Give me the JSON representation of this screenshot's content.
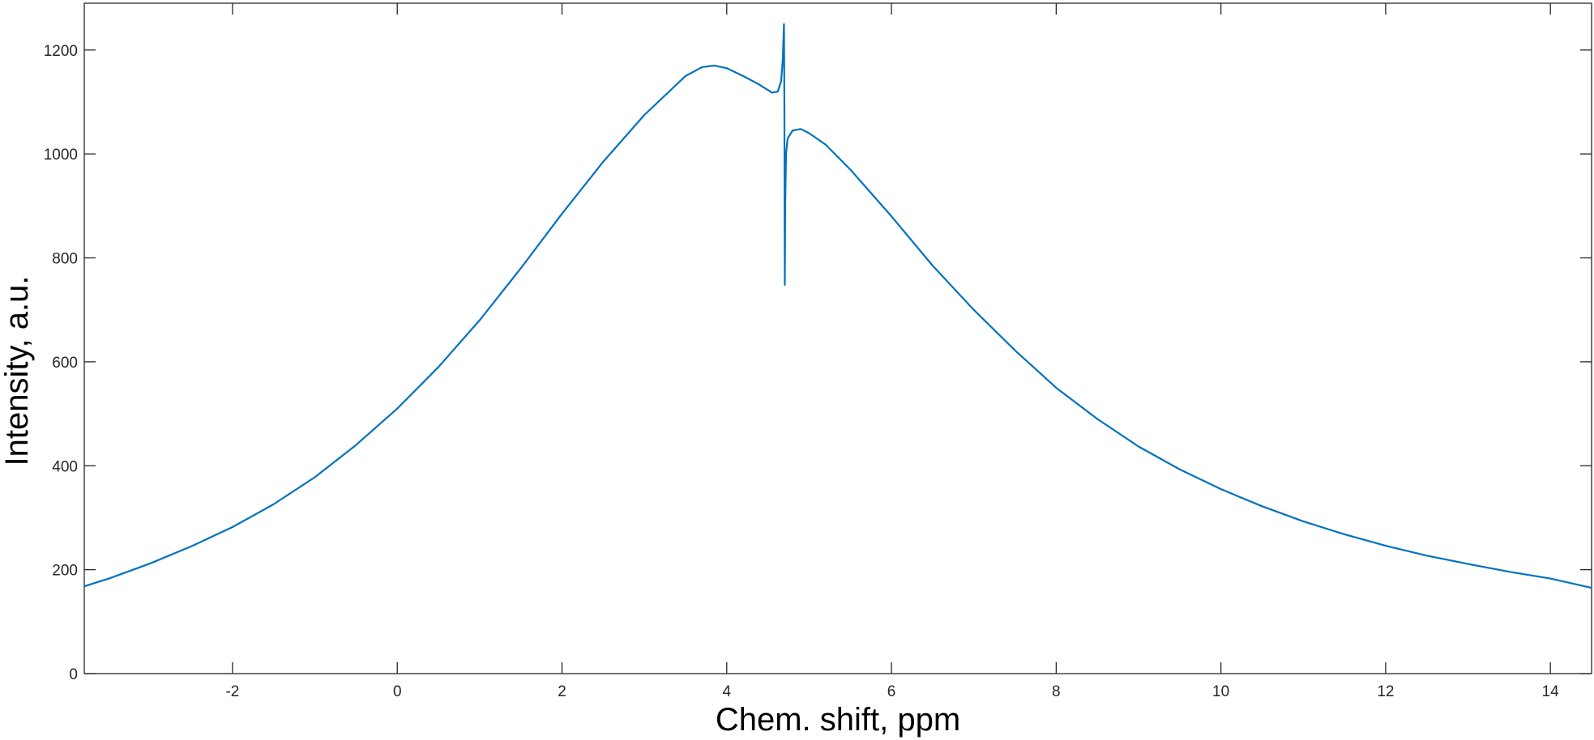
{
  "chart_data": {
    "type": "line",
    "xlabel": "Chem. shift, ppm",
    "ylabel": "Intensity, a.u.",
    "xlim": [
      -3.8,
      14.5
    ],
    "ylim": [
      0,
      1290
    ],
    "x_ticks": [
      -2,
      0,
      2,
      4,
      6,
      8,
      10,
      12,
      14
    ],
    "x_tick_labels": [
      "-2",
      "0",
      "2",
      "4",
      "6",
      "8",
      "10",
      "12",
      "14"
    ],
    "y_ticks": [
      0,
      200,
      400,
      600,
      800,
      1000,
      1200
    ],
    "y_tick_labels": [
      "0",
      "200",
      "400",
      "600",
      "800",
      "1000",
      "1200"
    ],
    "grid": false,
    "line_color": "#0072BD",
    "series": [
      {
        "points": [
          [
            -3.8,
            168
          ],
          [
            -3.5,
            183
          ],
          [
            -3.0,
            212
          ],
          [
            -2.5,
            245
          ],
          [
            -2.0,
            282
          ],
          [
            -1.5,
            326
          ],
          [
            -1.0,
            378
          ],
          [
            -0.5,
            440
          ],
          [
            0.0,
            510
          ],
          [
            0.5,
            590
          ],
          [
            1.0,
            680
          ],
          [
            1.5,
            780
          ],
          [
            2.0,
            885
          ],
          [
            2.5,
            985
          ],
          [
            3.0,
            1075
          ],
          [
            3.3,
            1120
          ],
          [
            3.5,
            1150
          ],
          [
            3.7,
            1167
          ],
          [
            3.85,
            1170
          ],
          [
            4.0,
            1165
          ],
          [
            4.2,
            1150
          ],
          [
            4.4,
            1133
          ],
          [
            4.55,
            1118
          ],
          [
            4.62,
            1120
          ],
          [
            4.66,
            1140
          ],
          [
            4.68,
            1180
          ],
          [
            4.695,
            1250
          ],
          [
            4.7,
            1100
          ],
          [
            4.705,
            748
          ],
          [
            4.71,
            900
          ],
          [
            4.72,
            1000
          ],
          [
            4.74,
            1030
          ],
          [
            4.8,
            1045
          ],
          [
            4.9,
            1048
          ],
          [
            5.0,
            1040
          ],
          [
            5.2,
            1018
          ],
          [
            5.5,
            970
          ],
          [
            6.0,
            880
          ],
          [
            6.5,
            785
          ],
          [
            7.0,
            700
          ],
          [
            7.5,
            622
          ],
          [
            8.0,
            550
          ],
          [
            8.5,
            490
          ],
          [
            9.0,
            437
          ],
          [
            9.5,
            393
          ],
          [
            10.0,
            355
          ],
          [
            10.5,
            322
          ],
          [
            11.0,
            293
          ],
          [
            11.5,
            268
          ],
          [
            12.0,
            246
          ],
          [
            12.5,
            227
          ],
          [
            13.0,
            211
          ],
          [
            13.5,
            196
          ],
          [
            14.0,
            183
          ],
          [
            14.5,
            165
          ]
        ]
      }
    ]
  }
}
